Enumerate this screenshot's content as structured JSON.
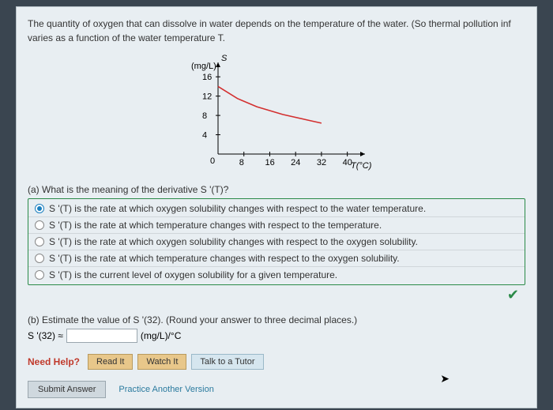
{
  "problem": {
    "line1": "The quantity of oxygen that can dissolve in water depends on the temperature of the water. (So thermal pollution inf",
    "line2": "varies as a function of the water temperature T."
  },
  "chart": {
    "type": "line",
    "y_label_top": "S",
    "y_unit": "(mg/L)",
    "x_label": "T(°C)",
    "x_ticks": [
      8,
      16,
      24,
      32,
      40
    ],
    "y_ticks": [
      4,
      8,
      12,
      16
    ],
    "xlim": [
      0,
      44
    ],
    "ylim": [
      0,
      18
    ],
    "line_color": "#d32f2f",
    "axis_color": "#000000",
    "points": [
      {
        "x": 0,
        "y": 14
      },
      {
        "x": 6,
        "y": 11.5
      },
      {
        "x": 12,
        "y": 9.8
      },
      {
        "x": 20,
        "y": 8.2
      },
      {
        "x": 28,
        "y": 7.0
      },
      {
        "x": 32,
        "y": 6.4
      }
    ]
  },
  "part_a": {
    "question": "(a) What is the meaning of the derivative S '(T)?",
    "selected_index": 0,
    "options": [
      "S '(T) is the rate at which oxygen solubility changes with respect to the water temperature.",
      "S '(T) is the rate at which temperature changes with respect to the temperature.",
      "S '(T) is the rate at which oxygen solubility changes with respect to the oxygen solubility.",
      "S '(T) is the rate at which temperature changes with respect to the oxygen solubility.",
      "S '(T) is the current level of oxygen solubility for a given temperature."
    ],
    "correct_icon": "✔"
  },
  "part_b": {
    "text": "(b) Estimate the value of S '(32). (Round your answer to three decimal places.)",
    "lhs": "S '(32) ≈",
    "unit": "(mg/L)/°C",
    "value": ""
  },
  "help": {
    "label": "Need Help?",
    "read": "Read It",
    "watch": "Watch It",
    "tutor": "Talk to a Tutor"
  },
  "footer": {
    "submit": "Submit Answer",
    "practice": "Practice Another Version"
  }
}
